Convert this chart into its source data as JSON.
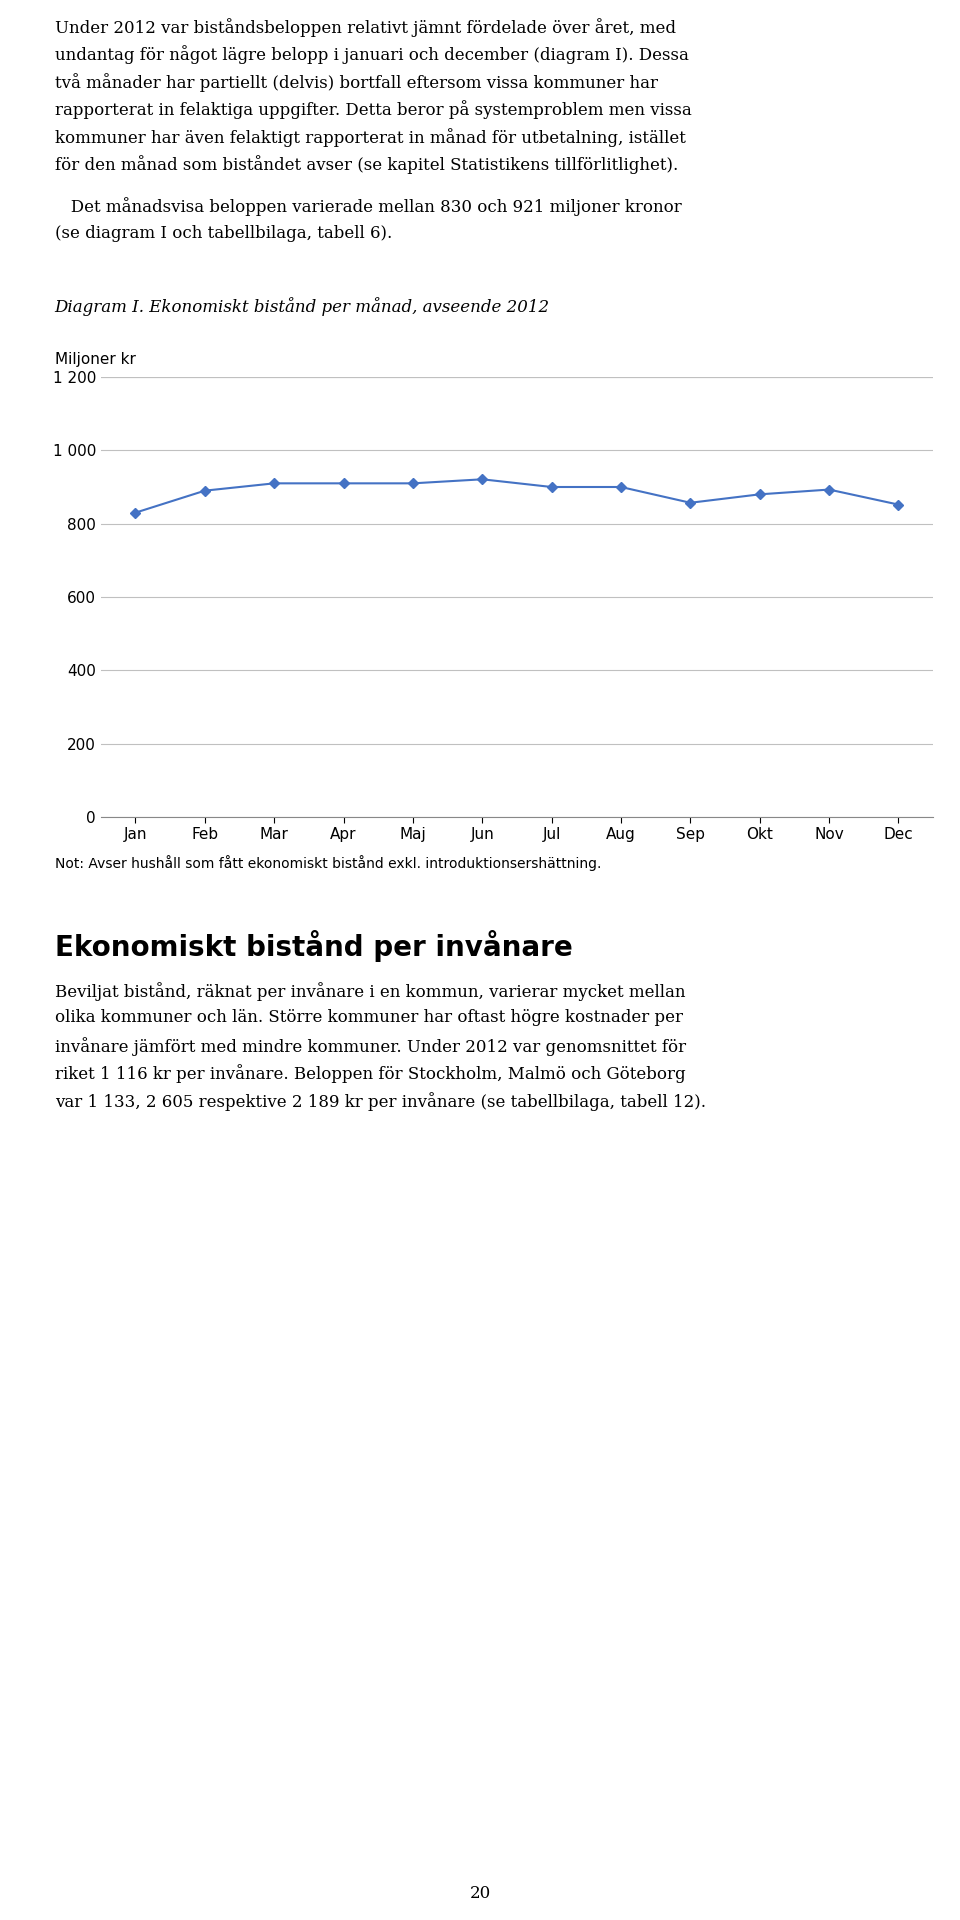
{
  "paragraph1_lines": [
    "Under 2012 var biståndsbeloppen relativt jämnt fördelade över året, med",
    "undantag för något lägre belopp i januari och december (diagram I). Dessa",
    "två månader har partiellt (delvis) bortfall eftersom vissa kommuner har",
    "rapporterat in felaktiga uppgifter. Detta beror på systemproblem men vissa",
    "kommuner har även felaktigt rapporterat in månad för utbetalning, istället",
    "för den månad som biståndet avser (se kapitel Statistikens tillförlitlighet)."
  ],
  "paragraph2_lines": [
    "   Det månadsvisa beloppen varierade mellan 830 och 921 miljoner kronor",
    "(se diagram I och tabellbilaga, tabell 6)."
  ],
  "diagram_title": "Diagram I. Ekonomiskt bistånd per månad, avseende 2012",
  "ylabel": "Miljoner kr",
  "months": [
    "Jan",
    "Feb",
    "Mar",
    "Apr",
    "Maj",
    "Jun",
    "Jul",
    "Aug",
    "Sep",
    "Okt",
    "Nov",
    "Dec"
  ],
  "values": [
    830,
    890,
    910,
    910,
    910,
    921,
    900,
    900,
    857,
    880,
    893,
    852
  ],
  "ylim": [
    0,
    1200
  ],
  "yticks": [
    0,
    200,
    400,
    600,
    800,
    1000,
    1200
  ],
  "line_color": "#4472C4",
  "marker": "D",
  "marker_size": 5,
  "note": "Not: Avser hushåll som fått ekonomiskt bistånd exkl. introduktionsershättning.",
  "note_correct": "Not: Avser hushåll som fått ekonomiskt bistånd exkl. introduktionsershättning.",
  "section_title": "Ekonomiskt bistånd per invånare",
  "section_body_lines": [
    "Beviljat bistånd, räknat per invånare i en kommun, varierar mycket mellan",
    "olika kommuner och län. Större kommuner har oftast högre kostnader per",
    "invånare jämfört med mindre kommuner. Under 2012 var genomsnittet för",
    "riket 1 116 kr per invånare. Beloppen för Stockholm, Malmö och Göteborg",
    "var 1 133, 2 605 respektive 2 189 kr per invånare (se tabellbilaga, tabell 12)."
  ],
  "page_number": "20",
  "background_color": "#ffffff",
  "text_color": "#000000",
  "grid_color": "#c0c0c0"
}
